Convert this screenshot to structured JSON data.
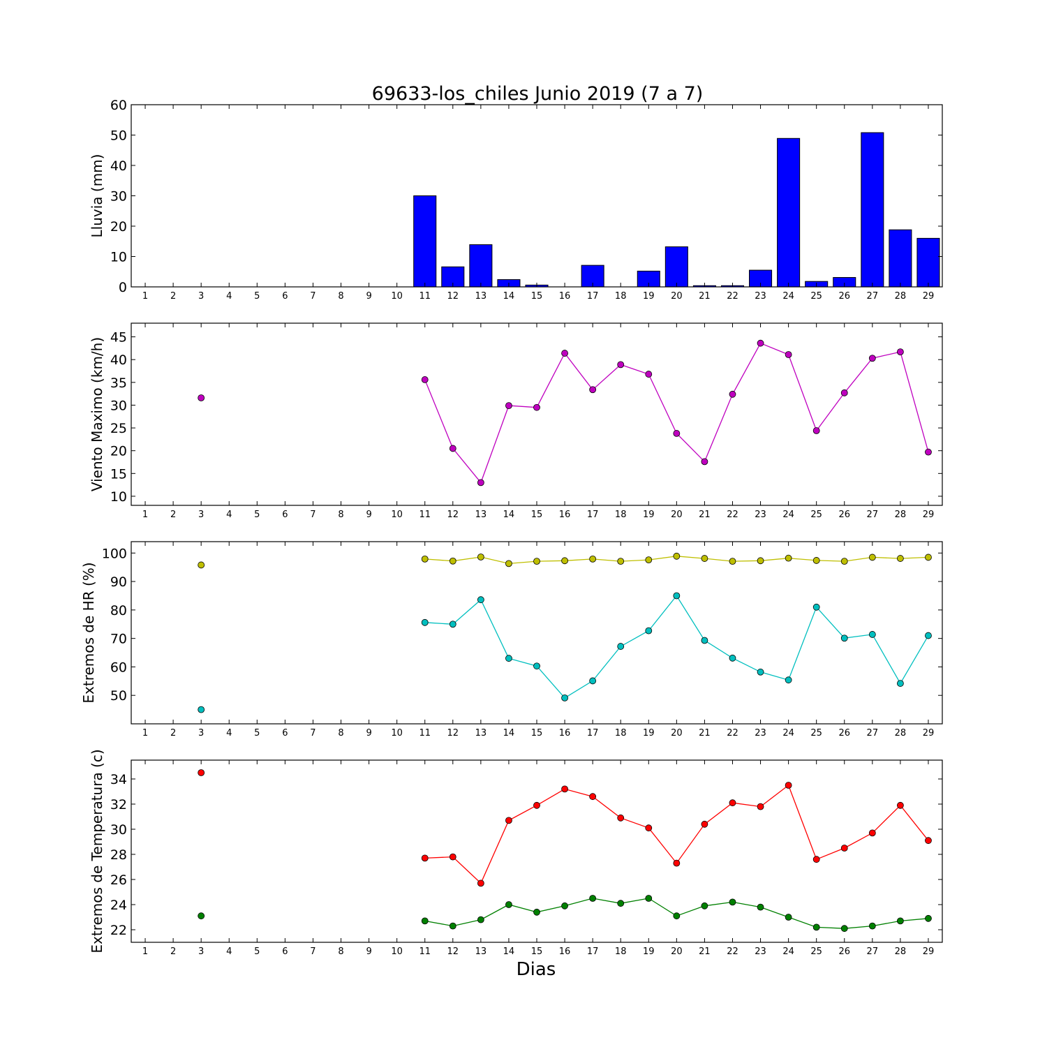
{
  "title": "69633-los_chiles Junio 2019  (7 a 7)",
  "xlabel": "Dias",
  "colors": {
    "rain": "#0000ff",
    "wind": "#bf00bf",
    "hr_max": "#bfbf00",
    "hr_min": "#00bfbf",
    "temp_max": "#ff0000",
    "temp_min": "#008000"
  },
  "chart_data": [
    {
      "type": "bar",
      "ylabel": "Lluvia (mm)",
      "ylim": [
        0,
        60
      ],
      "yticks": [
        0,
        10,
        20,
        30,
        40,
        50,
        60
      ],
      "x": [
        1,
        2,
        3,
        4,
        5,
        6,
        7,
        8,
        9,
        10,
        11,
        12,
        13,
        14,
        15,
        16,
        17,
        18,
        19,
        20,
        21,
        22,
        23,
        24,
        25,
        26,
        27,
        28,
        29
      ],
      "series": [
        {
          "color_key": "rain",
          "values": [
            0,
            0,
            0,
            0,
            0,
            0,
            0,
            0,
            0,
            0,
            30,
            6.6,
            13.9,
            2.4,
            0.6,
            0,
            7.1,
            0,
            5.2,
            13.2,
            0.4,
            0.4,
            5.5,
            48.9,
            1.8,
            3.1,
            50.8,
            18.8,
            16
          ]
        }
      ]
    },
    {
      "type": "line",
      "ylabel": "Viento Maximo (km/h)",
      "ylim": [
        8,
        48
      ],
      "yticks": [
        10,
        15,
        20,
        25,
        30,
        35,
        40,
        45
      ],
      "x": [
        1,
        2,
        3,
        4,
        5,
        6,
        7,
        8,
        9,
        10,
        11,
        12,
        13,
        14,
        15,
        16,
        17,
        18,
        19,
        20,
        21,
        22,
        23,
        24,
        25,
        26,
        27,
        28,
        29
      ],
      "series": [
        {
          "color_key": "wind",
          "values": [
            null,
            null,
            31.6,
            null,
            null,
            null,
            null,
            null,
            null,
            null,
            35.6,
            20.5,
            13,
            29.9,
            29.5,
            41.4,
            33.4,
            38.9,
            36.8,
            23.8,
            17.6,
            32.4,
            43.6,
            41.1,
            24.4,
            32.7,
            40.3,
            41.7,
            19.7
          ]
        }
      ]
    },
    {
      "type": "line",
      "ylabel": "Extremos de HR (%)",
      "ylim": [
        40,
        104
      ],
      "yticks": [
        50,
        60,
        70,
        80,
        90,
        100
      ],
      "x": [
        1,
        2,
        3,
        4,
        5,
        6,
        7,
        8,
        9,
        10,
        11,
        12,
        13,
        14,
        15,
        16,
        17,
        18,
        19,
        20,
        21,
        22,
        23,
        24,
        25,
        26,
        27,
        28,
        29
      ],
      "series": [
        {
          "color_key": "hr_max",
          "values": [
            null,
            null,
            95.8,
            null,
            null,
            null,
            null,
            null,
            null,
            null,
            97.9,
            97.2,
            98.6,
            96.3,
            97.1,
            97.3,
            97.9,
            97.1,
            97.6,
            98.9,
            98.1,
            97.1,
            97.3,
            98.2,
            97.4,
            97.1,
            98.5,
            98.1,
            98.5
          ]
        },
        {
          "color_key": "hr_min",
          "values": [
            null,
            null,
            45,
            null,
            null,
            null,
            null,
            null,
            null,
            null,
            75.6,
            75,
            83.6,
            63,
            60.3,
            49.1,
            55.1,
            67.2,
            72.7,
            85,
            69.3,
            63.1,
            58.2,
            55.4,
            81,
            70.1,
            71.4,
            54.2,
            71
          ]
        }
      ]
    },
    {
      "type": "line",
      "ylabel": "Extremos de Temperatura (c)",
      "ylim": [
        21,
        35.5
      ],
      "yticks": [
        22,
        24,
        26,
        28,
        30,
        32,
        34
      ],
      "x": [
        1,
        2,
        3,
        4,
        5,
        6,
        7,
        8,
        9,
        10,
        11,
        12,
        13,
        14,
        15,
        16,
        17,
        18,
        19,
        20,
        21,
        22,
        23,
        24,
        25,
        26,
        27,
        28,
        29
      ],
      "series": [
        {
          "color_key": "temp_max",
          "values": [
            null,
            null,
            34.5,
            null,
            null,
            null,
            null,
            null,
            null,
            null,
            27.7,
            27.8,
            25.7,
            30.7,
            31.9,
            33.2,
            32.6,
            30.9,
            30.1,
            27.3,
            30.4,
            32.1,
            31.8,
            33.5,
            27.6,
            28.5,
            29.7,
            31.9,
            29.1
          ]
        },
        {
          "color_key": "temp_min",
          "values": [
            null,
            null,
            23.1,
            null,
            null,
            null,
            null,
            null,
            null,
            null,
            22.7,
            22.3,
            22.8,
            24,
            23.4,
            23.9,
            24.5,
            24.1,
            24.5,
            23.1,
            23.9,
            24.2,
            23.8,
            23,
            22.2,
            22.1,
            22.3,
            22.7,
            22.9
          ]
        }
      ]
    }
  ]
}
